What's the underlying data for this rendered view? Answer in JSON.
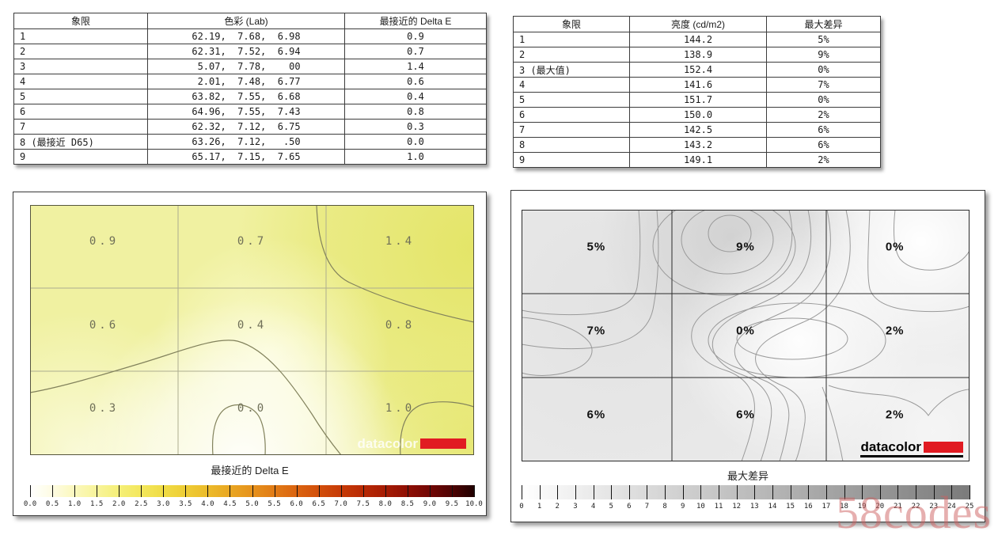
{
  "watermark": "58codes",
  "brand": {
    "name": "datacolor",
    "accent_red": "#e11b22"
  },
  "chart_data": [
    {
      "type": "table",
      "id": "color-uniformity-table",
      "headers": [
        "象限",
        "色彩 (Lab)",
        "最接近的 Delta E"
      ],
      "rows": [
        [
          "1",
          "62.19,  7.68,  6.98",
          "0.9"
        ],
        [
          "2",
          "62.31,  7.52,  6.94",
          "0.7"
        ],
        [
          "3",
          " 5.07,  7.78,    00",
          "1.4"
        ],
        [
          "4",
          " 2.01,  7.48,  6.77",
          "0.6"
        ],
        [
          "5",
          "63.82,  7.55,  6.68",
          "0.4"
        ],
        [
          "6",
          "64.96,  7.55,  7.43",
          "0.8"
        ],
        [
          "7",
          "62.32,  7.12,  6.75",
          "0.3"
        ],
        [
          "8 (最接近 D65)",
          "63.26,  7.12,   .50",
          "0.0"
        ],
        [
          "9",
          "65.17,  7.15,  7.65",
          "1.0"
        ]
      ]
    },
    {
      "type": "table",
      "id": "luminance-uniformity-table",
      "headers": [
        "象限",
        "亮度 (cd/m2)",
        "最大差异"
      ],
      "rows": [
        [
          "1",
          "144.2",
          "5%"
        ],
        [
          "2",
          "138.9",
          "9%"
        ],
        [
          "3 (最大值)",
          "152.4",
          "0%"
        ],
        [
          "4",
          "141.6",
          "7%"
        ],
        [
          "5",
          "151.7",
          "0%"
        ],
        [
          "6",
          "150.0",
          "2%"
        ],
        [
          "7",
          "142.5",
          "6%"
        ],
        [
          "8",
          "143.2",
          "6%"
        ],
        [
          "9",
          "149.1",
          "2%"
        ]
      ]
    },
    {
      "type": "contour-heatmap",
      "id": "delta-e-map",
      "legend_title": "最接近的 Delta E",
      "grid_rows": 3,
      "grid_cols": 3,
      "grid": [
        [
          0.9,
          0.7,
          1.4
        ],
        [
          0.6,
          0.4,
          0.8
        ],
        [
          0.3,
          0.0,
          1.0
        ]
      ],
      "cell_labels": [
        [
          "0.9",
          "0.7",
          "1.4"
        ],
        [
          "0.6",
          "0.4",
          "0.8"
        ],
        [
          "0.3",
          "0.0",
          "1.0"
        ]
      ],
      "colorbar": {
        "min": 0.0,
        "max": 10.0,
        "step": 0.5,
        "tick_labels": [
          "0.0",
          "0.5",
          "1.0",
          "1.5",
          "2.0",
          "2.5",
          "3.0",
          "3.5",
          "4.0",
          "4.5",
          "5.0",
          "5.5",
          "6.0",
          "6.5",
          "7.0",
          "7.5",
          "8.0",
          "8.5",
          "9.0",
          "9.5",
          "10.0"
        ],
        "gradient": [
          "#ffffff",
          "#fefce3",
          "#fbf8bd",
          "#f8f49a",
          "#f5ef78",
          "#f3e75c",
          "#f0dc45",
          "#eecd35",
          "#ecbb2a",
          "#e9a723",
          "#e6921c",
          "#e17b16",
          "#db6410",
          "#d24f0b",
          "#c73b07",
          "#b92a05",
          "#a61c04",
          "#8f0f04",
          "#730705",
          "#4f0303",
          "#200000"
        ]
      }
    },
    {
      "type": "contour-heatmap",
      "id": "max-diff-map",
      "legend_title": "最大差异",
      "grid_rows": 3,
      "grid_cols": 3,
      "grid": [
        [
          5,
          9,
          0
        ],
        [
          7,
          0,
          2
        ],
        [
          6,
          6,
          2
        ]
      ],
      "cell_labels": [
        [
          "5%",
          "9%",
          "0%"
        ],
        [
          "7%",
          "0%",
          "2%"
        ],
        [
          "6%",
          "6%",
          "2%"
        ]
      ],
      "colorbar": {
        "min": 0,
        "max": 25,
        "step": 1,
        "tick_labels": [
          "0",
          "1",
          "2",
          "3",
          "4",
          "5",
          "6",
          "7",
          "8",
          "9",
          "10",
          "11",
          "12",
          "13",
          "14",
          "15",
          "16",
          "17",
          "18",
          "19",
          "20",
          "21",
          "22",
          "23",
          "24",
          "25"
        ],
        "gradient": [
          "#ffffff",
          "#7b7b7b"
        ]
      }
    }
  ]
}
